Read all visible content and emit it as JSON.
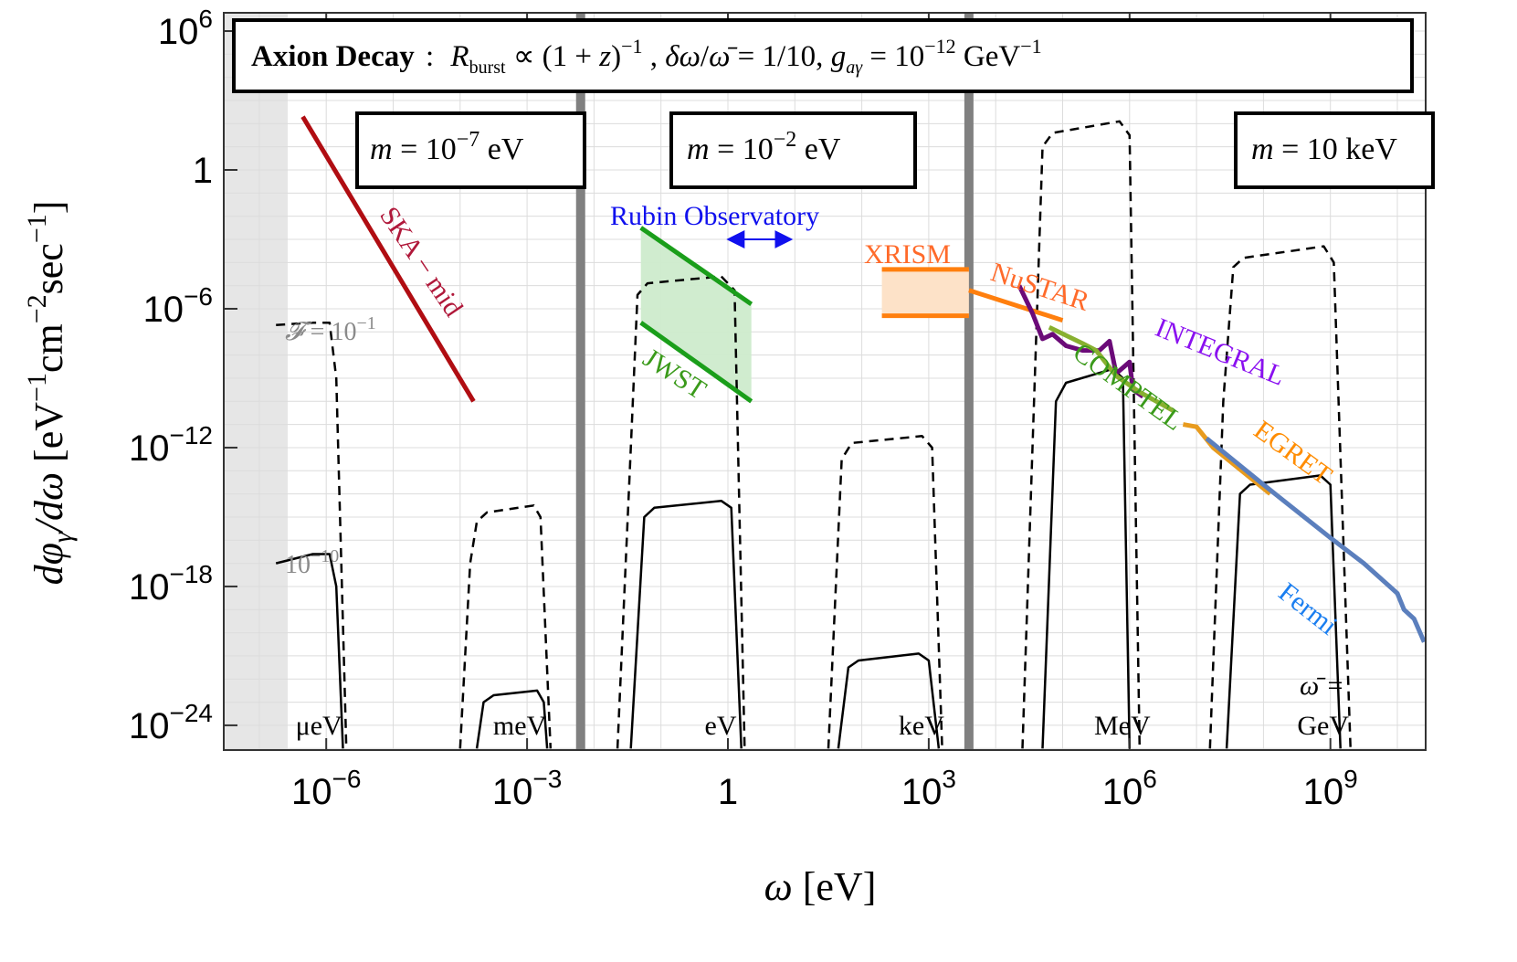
{
  "chart_data": {
    "type": "line",
    "title": "Axion Decay : R_burst ∝ (1+z)^-1, δω/ω̄ = 1/10, g_aγ = 10^-12 GeV^-1",
    "title_parts": {
      "bold": "Axion Decay",
      "rest": ": R",
      "sub_burst": "burst",
      "prop": " ∝ (1 + z)",
      "sup1": "−1",
      "params": ",  δω/ω̄ = 1/10,  g",
      "sub_ag": "aγ",
      "eq": " = 10",
      "sup12": "−12",
      "unit": " GeV",
      "supunit": "−1"
    },
    "xlabel": "ω [eV]",
    "ylabel": "dφ_γ/dω [eV^-1 cm^-2 sec^-1]",
    "xscale": "log",
    "yscale": "log",
    "xlim_log10": [
      -7.5,
      10.4
    ],
    "ylim_log10": [
      -25,
      7
    ],
    "grid": true,
    "x_ticks": [
      {
        "base": "10",
        "exp": "−6",
        "log10": -6
      },
      {
        "base": "10",
        "exp": "−3",
        "log10": -3
      },
      {
        "base": "1",
        "exp": "",
        "log10": 0
      },
      {
        "base": "10",
        "exp": "3",
        "log10": 3
      },
      {
        "base": "10",
        "exp": "6",
        "log10": 6
      },
      {
        "base": "10",
        "exp": "9",
        "log10": 9
      }
    ],
    "y_ticks": [
      {
        "base": "10",
        "exp": "6",
        "log10": 6
      },
      {
        "base": "1",
        "exp": "",
        "log10": 0
      },
      {
        "base": "10",
        "exp": "−6",
        "log10": -6
      },
      {
        "base": "10",
        "exp": "−12",
        "log10": -12
      },
      {
        "base": "10",
        "exp": "−18",
        "log10": -18
      },
      {
        "base": "10",
        "exp": "−24",
        "log10": -24
      }
    ],
    "excluded_region": {
      "x_log10": [
        -7.5,
        -6.75
      ],
      "color": "#e6e6e6"
    },
    "mass_dividers_log10": [
      -2.2,
      3.6
    ],
    "mass_boxes": [
      {
        "label": "m = 10^-7 eV",
        "m": "m",
        "eq": " = 10",
        "sup": "−7",
        "unit": " eV"
      },
      {
        "label": "m = 10^-2 eV",
        "m": "m",
        "eq": " = 10",
        "sup": "−2",
        "unit": " eV"
      },
      {
        "label": "m = 10 keV",
        "m": "m",
        "eq": " = 10",
        "sup": "",
        "unit": " keV"
      }
    ],
    "curve_labels": {
      "F_high": "𝓕 = 10",
      "F_high_sup": "−1",
      "F_low": "10",
      "F_low_sup": "−10"
    },
    "bands": [
      {
        "label": "μeV",
        "center_log10": -6.0,
        "dashed": [
          [
            -6.75,
            -6.7
          ],
          [
            -6.2,
            -6.6
          ],
          [
            -5.95,
            -6.6
          ],
          [
            -5.85,
            -9
          ],
          [
            -5.7,
            -25
          ]
        ],
        "solid": [
          [
            -6.75,
            -17.0
          ],
          [
            -6.2,
            -16.6
          ],
          [
            -5.95,
            -16.6
          ],
          [
            -5.85,
            -18
          ],
          [
            -5.75,
            -25
          ]
        ]
      },
      {
        "label": "meV",
        "center_log10": -3.0,
        "dashed": [
          [
            -4.0,
            -25
          ],
          [
            -3.85,
            -17
          ],
          [
            -3.75,
            -15.2
          ],
          [
            -3.6,
            -14.8
          ],
          [
            -2.9,
            -14.5
          ],
          [
            -2.8,
            -15
          ],
          [
            -2.65,
            -25
          ]
        ],
        "solid": [
          [
            -3.75,
            -25
          ],
          [
            -3.65,
            -23.0
          ],
          [
            -3.5,
            -22.7
          ],
          [
            -2.85,
            -22.5
          ],
          [
            -2.75,
            -23
          ],
          [
            -2.7,
            -25
          ]
        ]
      },
      {
        "label": "eV",
        "center_log10": 0.0,
        "dashed": [
          [
            -1.65,
            -25
          ],
          [
            -1.45,
            -12
          ],
          [
            -1.35,
            -5.4
          ],
          [
            -1.2,
            -4.9
          ],
          [
            -0.1,
            -4.6
          ],
          [
            0.1,
            -5.2
          ],
          [
            0.25,
            -25
          ]
        ],
        "solid": [
          [
            -1.45,
            -25
          ],
          [
            -1.25,
            -15.0
          ],
          [
            -1.1,
            -14.6
          ],
          [
            -0.1,
            -14.3
          ],
          [
            0.05,
            -14.6
          ],
          [
            0.2,
            -25
          ]
        ]
      },
      {
        "label": "keV",
        "center_log10": 3.0,
        "dashed": [
          [
            1.5,
            -25
          ],
          [
            1.7,
            -12.5
          ],
          [
            1.85,
            -11.8
          ],
          [
            2.9,
            -11.5
          ],
          [
            3.05,
            -12
          ],
          [
            3.2,
            -25
          ]
        ],
        "solid": [
          [
            1.65,
            -25
          ],
          [
            1.8,
            -21.5
          ],
          [
            1.95,
            -21.2
          ],
          [
            2.85,
            -20.9
          ],
          [
            3.0,
            -21.2
          ],
          [
            3.15,
            -25
          ]
        ]
      },
      {
        "label": "MeV",
        "center_log10": 6.0,
        "dashed": [
          [
            4.4,
            -25
          ],
          [
            4.55,
            -12
          ],
          [
            4.7,
            1.0
          ],
          [
            4.85,
            1.6
          ],
          [
            5.85,
            2.1
          ],
          [
            6.0,
            1.5
          ],
          [
            6.15,
            -25
          ]
        ],
        "solid": [
          [
            4.7,
            -25
          ],
          [
            4.9,
            -10
          ],
          [
            5.05,
            -9.2
          ],
          [
            5.75,
            -8.6
          ],
          [
            5.9,
            -9
          ],
          [
            6.0,
            -25
          ]
        ]
      },
      {
        "label": "GeV",
        "center_log10": 9.0,
        "dashed": [
          [
            7.2,
            -25
          ],
          [
            7.4,
            -10
          ],
          [
            7.55,
            -4.2
          ],
          [
            7.7,
            -3.8
          ],
          [
            8.9,
            -3.3
          ],
          [
            9.05,
            -4
          ],
          [
            9.3,
            -25
          ]
        ],
        "solid": [
          [
            7.45,
            -25
          ],
          [
            7.65,
            -14.0
          ],
          [
            7.8,
            -13.6
          ],
          [
            8.85,
            -13.2
          ],
          [
            9.0,
            -13.6
          ],
          [
            9.15,
            -25
          ]
        ]
      }
    ],
    "band_note": "ω̄ =",
    "series": [
      {
        "name": "SKA − mid",
        "color": "#b00d12",
        "text_color": "#b0183a",
        "points_log10": [
          [
            -6.35,
            2.3
          ],
          [
            -3.8,
            -10.0
          ]
        ]
      },
      {
        "name": "JWST",
        "color": "#1a9e1a",
        "text_color": "#3a9a1a",
        "fill": "#cdebcc",
        "upper": [
          [
            -1.3,
            -2.5
          ],
          [
            0.35,
            -5.8
          ]
        ],
        "lower": [
          [
            -1.3,
            -6.6
          ],
          [
            0.35,
            -10.0
          ]
        ]
      },
      {
        "name": "Rubin Observatory",
        "color": "#1010ee",
        "arrow_log10": [
          [
            -0.05,
            -3.0
          ],
          [
            1.0,
            -3.0
          ]
        ]
      },
      {
        "name": "XRISM",
        "color": "#ff7f0e",
        "text_color": "#ff6a2a",
        "fill": "#fde2c8",
        "upper_y": -4.3,
        "lower_y": -6.3,
        "x_range": [
          2.3,
          3.6
        ]
      },
      {
        "name": "NuSTAR",
        "color": "#ff7f0e",
        "text_color": "#ff6a2a",
        "points_log10": [
          [
            3.6,
            -5.2
          ],
          [
            5.0,
            -6.5
          ]
        ]
      },
      {
        "name": "INTEGRAL",
        "color": "#6b0a78",
        "text_color": "#8a10f0",
        "points_log10": [
          [
            4.35,
            -5.0
          ],
          [
            4.55,
            -6.2
          ],
          [
            4.7,
            -7.3
          ],
          [
            4.85,
            -7.1
          ],
          [
            5.05,
            -7.6
          ],
          [
            5.3,
            -7.8
          ],
          [
            5.55,
            -7.8
          ],
          [
            5.7,
            -7.4
          ],
          [
            5.8,
            -8.8
          ],
          [
            6.0,
            -8.3
          ],
          [
            6.05,
            -9.5
          ],
          [
            6.2,
            -9.8
          ]
        ]
      },
      {
        "name": "COMPTEL",
        "color": "#88b030",
        "text_color": "#3a9a1a",
        "points_log10": [
          [
            4.8,
            -6.8
          ],
          [
            5.3,
            -7.5
          ],
          [
            5.5,
            -7.8
          ],
          [
            5.8,
            -8.9
          ],
          [
            6.15,
            -9.6
          ],
          [
            6.65,
            -10.4
          ]
        ]
      },
      {
        "name": "EGRET",
        "color": "#e89b1e",
        "text_color": "#ff8c00",
        "points_log10": [
          [
            6.8,
            -11.0
          ],
          [
            7.0,
            -11.1
          ],
          [
            7.25,
            -12.0
          ],
          [
            8.1,
            -14.0
          ]
        ]
      },
      {
        "name": "Fermi",
        "color": "#5b7fbd",
        "text_color": "#1a7ef0",
        "points_log10": [
          [
            7.15,
            -11.6
          ],
          [
            8.0,
            -13.6
          ],
          [
            9.0,
            -15.9
          ],
          [
            9.5,
            -17.0
          ],
          [
            10.0,
            -18.3
          ],
          [
            10.1,
            -19.0
          ],
          [
            10.25,
            -19.4
          ],
          [
            10.4,
            -20.4
          ]
        ]
      }
    ]
  }
}
